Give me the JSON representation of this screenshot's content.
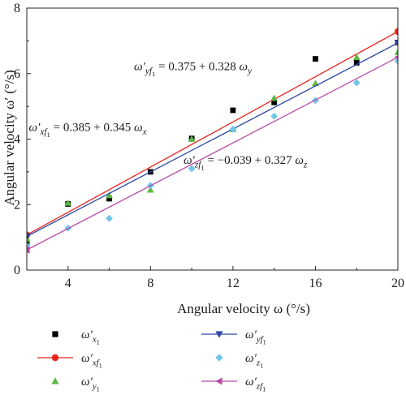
{
  "chart_data": {
    "type": "scatter",
    "xlabel": "Angular velocity ω (°/s)",
    "ylabel": "Angular velocity ω′ (°/s)",
    "xlim": [
      2,
      20
    ],
    "ylim": [
      0,
      8
    ],
    "xticks": [
      4,
      8,
      12,
      16,
      20
    ],
    "yticks": [
      0,
      2,
      4,
      6,
      8
    ],
    "grid": false,
    "legend_position": "bottom",
    "series": [
      {
        "name": "ω′x1",
        "kind": "points",
        "marker": "square",
        "color": "#000000",
        "x": [
          2,
          4,
          6,
          8,
          10,
          12,
          14,
          16,
          18,
          20
        ],
        "y": [
          0.85,
          2.02,
          2.18,
          3.0,
          4.02,
          4.88,
          5.12,
          6.45,
          6.33,
          6.95
        ]
      },
      {
        "name": "ω′xf1",
        "kind": "line",
        "marker": "circle",
        "color": "#e8251e",
        "x": [
          2,
          20
        ],
        "y": [
          1.075,
          7.285
        ]
      },
      {
        "name": "ω′y1",
        "kind": "points",
        "marker": "triangle-up",
        "color": "#5cb840",
        "x": [
          2,
          4,
          6,
          8,
          10,
          12,
          14,
          16,
          18,
          20
        ],
        "y": [
          0.95,
          2.05,
          2.28,
          2.45,
          4.0,
          4.3,
          5.25,
          5.7,
          6.5,
          6.65
        ]
      },
      {
        "name": "ω′yf1",
        "kind": "line",
        "marker": "triangle-down",
        "color": "#2b47a6",
        "x": [
          2,
          20
        ],
        "y": [
          1.031,
          6.935
        ]
      },
      {
        "name": "ω′z1",
        "kind": "points",
        "marker": "diamond",
        "color": "#6ec6e8",
        "x": [
          2,
          4,
          6,
          8,
          10,
          12,
          14,
          16,
          18,
          20
        ],
        "y": [
          0.75,
          1.28,
          1.58,
          2.58,
          3.1,
          4.3,
          4.7,
          5.18,
          5.72,
          6.38
        ]
      },
      {
        "name": "ω′zf1",
        "kind": "line",
        "marker": "triangle-left",
        "color": "#b84aa8",
        "x": [
          2,
          20
        ],
        "y": [
          0.615,
          6.501
        ]
      }
    ],
    "annotations": [
      {
        "text": "ω′yf1 = 0.375 + 0.328 ωy",
        "x": 7.2,
        "y": 6.1
      },
      {
        "text": "ω′xf1 = 0.385 + 0.345 ωx",
        "x": 2.1,
        "y": 4.25
      },
      {
        "text": "ω′zf1 = −0.039 + 0.327 ωz",
        "x": 9.6,
        "y": 3.25
      }
    ]
  }
}
